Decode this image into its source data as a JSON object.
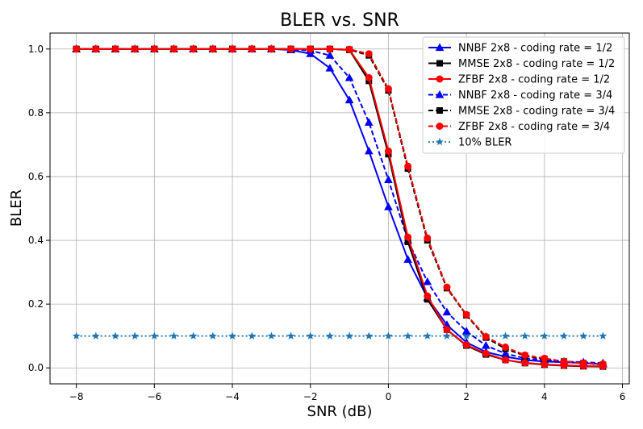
{
  "chart_data": {
    "type": "line",
    "title": "BLER vs. SNR",
    "xlabel": "SNR (dB)",
    "ylabel": "BLER",
    "xlim": [
      -8.675,
      6.175
    ],
    "ylim": [
      -0.05,
      1.05
    ],
    "grid": true,
    "legend_position": "top-right",
    "x_ticks": [
      -8,
      -6,
      -4,
      -2,
      0,
      2,
      4,
      6
    ],
    "x_tick_labels": [
      "−8",
      "−6",
      "−4",
      "−2",
      "0",
      "2",
      "4",
      "6"
    ],
    "y_ticks": [
      0.0,
      0.2,
      0.4,
      0.6,
      0.8,
      1.0
    ],
    "y_tick_labels": [
      "0.0",
      "0.2",
      "0.4",
      "0.6",
      "0.8",
      "1.0"
    ],
    "x": [
      -8,
      -7.5,
      -7,
      -6.5,
      -6,
      -5.5,
      -5,
      -4.5,
      -4,
      -3.5,
      -3,
      -2.5,
      -2,
      -1.5,
      -1,
      -0.5,
      0,
      0.5,
      1,
      1.5,
      2,
      2.5,
      3,
      3.5,
      4,
      4.5,
      5,
      5.5
    ],
    "series": [
      {
        "name": "NNBF 2x8 - coding rate = 1/2",
        "color": "#0000ff",
        "linestyle": "solid",
        "marker": "triangle",
        "values": [
          1,
          1,
          1,
          1,
          1,
          1,
          1,
          1,
          1,
          1,
          1,
          0.997,
          0.985,
          0.94,
          0.84,
          0.68,
          0.505,
          0.34,
          0.22,
          0.135,
          0.08,
          0.05,
          0.035,
          0.025,
          0.02,
          0.018,
          0.015,
          0.012
        ]
      },
      {
        "name": "MMSE 2x8 - coding rate = 1/2",
        "color": "#000000",
        "linestyle": "solid",
        "marker": "square",
        "values": [
          1,
          1,
          1,
          1,
          1,
          1,
          1,
          1,
          1,
          1,
          1,
          1,
          1,
          1,
          0.997,
          0.9,
          0.67,
          0.395,
          0.215,
          0.12,
          0.07,
          0.042,
          0.025,
          0.015,
          0.01,
          0.007,
          0.005,
          0.004
        ]
      },
      {
        "name": "ZFBF 2x8 - coding rate = 1/2",
        "color": "#ff0000",
        "linestyle": "solid",
        "marker": "circle",
        "values": [
          1,
          1,
          1,
          1,
          1,
          1,
          1,
          1,
          1,
          1,
          1,
          1,
          1,
          1,
          0.998,
          0.91,
          0.68,
          0.41,
          0.225,
          0.12,
          0.072,
          0.045,
          0.025,
          0.016,
          0.011,
          0.008,
          0.006,
          0.005
        ]
      },
      {
        "name": "NNBF 2x8 - coding rate = 3/4",
        "color": "#0000ff",
        "linestyle": "dashed",
        "marker": "triangle",
        "values": [
          1,
          1,
          1,
          1,
          1,
          1,
          1,
          1,
          1,
          1,
          1,
          0.999,
          0.995,
          0.98,
          0.91,
          0.77,
          0.59,
          0.4,
          0.27,
          0.175,
          0.115,
          0.07,
          0.045,
          0.03,
          0.025,
          0.02,
          0.018,
          0.015
        ]
      },
      {
        "name": "MMSE 2x8 - coding rate = 3/4",
        "color": "#000000",
        "linestyle": "dashed",
        "marker": "square",
        "values": [
          1,
          1,
          1,
          1,
          1,
          1,
          1,
          1,
          1,
          1,
          1,
          1,
          1,
          1,
          0.998,
          0.98,
          0.87,
          0.625,
          0.4,
          0.25,
          0.165,
          0.095,
          0.06,
          0.038,
          0.028,
          0.02,
          0.015,
          0.01
        ]
      },
      {
        "name": "ZFBF 2x8 - coding rate = 3/4",
        "color": "#ff0000",
        "linestyle": "dashed",
        "marker": "circle",
        "values": [
          1,
          1,
          1,
          1,
          1,
          1,
          1,
          1,
          1,
          1,
          1,
          1,
          1,
          1,
          0.999,
          0.985,
          0.875,
          0.632,
          0.407,
          0.253,
          0.167,
          0.098,
          0.065,
          0.04,
          0.03,
          0.02,
          0.015,
          0.012
        ]
      },
      {
        "name": " 10% BLER",
        "color": "#1f77b4",
        "linestyle": "dotted",
        "marker": "star",
        "values": [
          0.1,
          0.1,
          0.1,
          0.1,
          0.1,
          0.1,
          0.1,
          0.1,
          0.1,
          0.1,
          0.1,
          0.1,
          0.1,
          0.1,
          0.1,
          0.1,
          0.1,
          0.1,
          0.1,
          0.1,
          0.1,
          0.1,
          0.1,
          0.1,
          0.1,
          0.1,
          0.1,
          0.1
        ]
      }
    ]
  }
}
